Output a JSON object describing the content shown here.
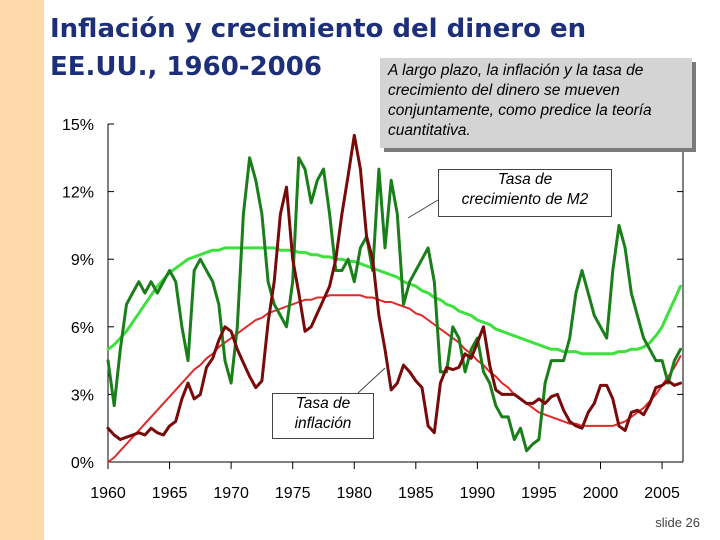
{
  "title": {
    "line1": "Inflación y crecimiento del dinero en",
    "line2": "EE.UU., 1960-2006"
  },
  "annotation": {
    "line1": "A largo plazo, la inflación y la tasa de",
    "line2": "crecimiento del dinero se mueven",
    "line3": "conjuntamente, como predice la teoría",
    "line4": "cuantitativa."
  },
  "callouts": {
    "m2": {
      "line1": "Tasa de",
      "line2": "crecimiento de M2"
    },
    "inflation": {
      "line1": "Tasa de",
      "line2": "inflación"
    }
  },
  "slide_label": "slide 26",
  "colors": {
    "m2": "#1a7f1a",
    "m2_trend": "#3ee03e",
    "inflation": "#7a0a0a",
    "inflation_trend": "#e02a2a",
    "accent_strip": "#fdd8a8",
    "title": "#1c2f78"
  },
  "chart_data": {
    "type": "line",
    "title": "Inflación y crecimiento del dinero en EE.UU., 1960-2006",
    "xlabel": "",
    "ylabel": "",
    "xlim": [
      1960,
      2006.7
    ],
    "ylim": [
      0,
      15
    ],
    "grid": false,
    "x_ticks": [
      1960,
      1965,
      1970,
      1975,
      1980,
      1985,
      1990,
      1995,
      2000,
      2005
    ],
    "x_tick_labels": [
      "1960",
      "1965",
      "1970",
      "1975",
      "1980",
      "1985",
      "1990",
      "1995",
      "2000",
      "2005"
    ],
    "y_ticks": [
      0,
      3,
      6,
      9,
      12,
      15
    ],
    "y_tick_labels": [
      "0%",
      "3%",
      "6%",
      "9%",
      "12%",
      "15%"
    ],
    "x": [
      1960.0,
      1960.5,
      1961.0,
      1961.5,
      1962.0,
      1962.5,
      1963.0,
      1963.5,
      1964.0,
      1964.5,
      1965.0,
      1965.5,
      1966.0,
      1966.5,
      1967.0,
      1967.5,
      1968.0,
      1968.5,
      1969.0,
      1969.5,
      1970.0,
      1970.5,
      1971.0,
      1971.5,
      1972.0,
      1972.5,
      1973.0,
      1973.5,
      1974.0,
      1974.5,
      1975.0,
      1975.5,
      1976.0,
      1976.5,
      1977.0,
      1977.5,
      1978.0,
      1978.5,
      1979.0,
      1979.5,
      1980.0,
      1980.5,
      1981.0,
      1981.5,
      1982.0,
      1982.5,
      1983.0,
      1983.5,
      1984.0,
      1984.5,
      1985.0,
      1985.5,
      1986.0,
      1986.5,
      1987.0,
      1987.5,
      1988.0,
      1988.5,
      1989.0,
      1989.5,
      1990.0,
      1990.5,
      1991.0,
      1991.5,
      1992.0,
      1992.5,
      1993.0,
      1993.5,
      1994.0,
      1994.5,
      1995.0,
      1995.5,
      1996.0,
      1996.5,
      1997.0,
      1997.5,
      1998.0,
      1998.5,
      1999.0,
      1999.5,
      2000.0,
      2000.5,
      2001.0,
      2001.5,
      2002.0,
      2002.5,
      2003.0,
      2003.5,
      2004.0,
      2004.5,
      2005.0,
      2005.5,
      2006.0,
      2006.5
    ],
    "series": [
      {
        "name": "Tasa de crecimiento de M2",
        "values": [
          4.5,
          2.5,
          5.0,
          7.0,
          7.5,
          8.0,
          7.5,
          8.0,
          7.5,
          8.0,
          8.5,
          8.0,
          6.0,
          4.5,
          8.5,
          9.0,
          8.5,
          8.0,
          7.0,
          4.5,
          3.5,
          6.0,
          11.0,
          13.5,
          12.5,
          11.0,
          8.0,
          7.0,
          6.5,
          6.0,
          8.0,
          13.5,
          13.0,
          11.5,
          12.5,
          13.0,
          11.0,
          8.5,
          8.5,
          9.0,
          8.0,
          9.5,
          10.0,
          8.5,
          13.0,
          9.5,
          12.5,
          11.0,
          7.0,
          8.0,
          8.5,
          9.0,
          9.5,
          8.0,
          4.0,
          4.0,
          6.0,
          5.5,
          4.0,
          5.0,
          5.5,
          4.0,
          3.5,
          2.5,
          2.0,
          2.0,
          1.0,
          1.5,
          0.5,
          0.8,
          1.0,
          3.5,
          4.5,
          4.5,
          4.5,
          5.5,
          7.5,
          8.5,
          7.5,
          6.5,
          6.0,
          5.5,
          8.5,
          10.5,
          9.5,
          7.5,
          6.5,
          5.5,
          5.0,
          4.5,
          4.5,
          3.5,
          4.5,
          5.0
        ]
      },
      {
        "name": "Tasa de inflación",
        "values": [
          1.5,
          1.2,
          1.0,
          1.1,
          1.2,
          1.3,
          1.2,
          1.5,
          1.3,
          1.2,
          1.6,
          1.8,
          2.8,
          3.5,
          2.8,
          3.0,
          4.2,
          4.6,
          5.4,
          6.0,
          5.8,
          5.0,
          4.4,
          3.8,
          3.3,
          3.6,
          6.2,
          8.0,
          11.0,
          12.2,
          9.0,
          7.5,
          5.8,
          6.0,
          6.6,
          7.2,
          7.8,
          9.0,
          11.0,
          12.7,
          14.5,
          13.0,
          10.0,
          9.0,
          6.5,
          5.0,
          3.2,
          3.5,
          4.3,
          4.0,
          3.6,
          3.3,
          1.6,
          1.3,
          3.5,
          4.2,
          4.1,
          4.2,
          4.8,
          4.6,
          5.3,
          6.0,
          4.3,
          3.2,
          3.0,
          3.0,
          3.0,
          2.8,
          2.6,
          2.6,
          2.8,
          2.6,
          2.9,
          3.0,
          2.3,
          1.8,
          1.6,
          1.5,
          2.2,
          2.6,
          3.4,
          3.4,
          2.8,
          1.6,
          1.4,
          2.2,
          2.3,
          2.1,
          2.6,
          3.3,
          3.4,
          3.6,
          3.4,
          3.5
        ]
      },
      {
        "name": "Tendencia M2",
        "style": "trend",
        "values": [
          5.0,
          5.2,
          5.5,
          5.8,
          6.2,
          6.6,
          7.0,
          7.4,
          7.8,
          8.1,
          8.4,
          8.6,
          8.8,
          9.0,
          9.1,
          9.2,
          9.3,
          9.4,
          9.4,
          9.5,
          9.5,
          9.5,
          9.5,
          9.5,
          9.5,
          9.5,
          9.5,
          9.5,
          9.4,
          9.4,
          9.4,
          9.3,
          9.3,
          9.2,
          9.2,
          9.1,
          9.1,
          9.0,
          9.0,
          8.9,
          8.9,
          8.8,
          8.7,
          8.6,
          8.5,
          8.4,
          8.3,
          8.2,
          8.0,
          7.9,
          7.8,
          7.6,
          7.5,
          7.3,
          7.2,
          7.0,
          6.9,
          6.7,
          6.6,
          6.5,
          6.3,
          6.2,
          6.1,
          5.9,
          5.8,
          5.7,
          5.6,
          5.5,
          5.4,
          5.3,
          5.2,
          5.1,
          5.0,
          5.0,
          4.9,
          4.9,
          4.9,
          4.8,
          4.8,
          4.8,
          4.8,
          4.8,
          4.8,
          4.9,
          4.9,
          5.0,
          5.0,
          5.1,
          5.3,
          5.6,
          6.0,
          6.6,
          7.2,
          7.8
        ]
      },
      {
        "name": "Tendencia inflación",
        "style": "trend",
        "values": [
          0.0,
          0.2,
          0.5,
          0.8,
          1.1,
          1.4,
          1.7,
          2.0,
          2.3,
          2.6,
          2.9,
          3.2,
          3.5,
          3.8,
          4.1,
          4.3,
          4.6,
          4.8,
          5.1,
          5.3,
          5.5,
          5.7,
          5.9,
          6.1,
          6.3,
          6.4,
          6.6,
          6.7,
          6.8,
          6.9,
          7.0,
          7.1,
          7.2,
          7.2,
          7.3,
          7.3,
          7.4,
          7.4,
          7.4,
          7.4,
          7.4,
          7.4,
          7.3,
          7.3,
          7.2,
          7.1,
          7.1,
          7.0,
          6.9,
          6.8,
          6.6,
          6.5,
          6.3,
          6.1,
          5.9,
          5.7,
          5.5,
          5.3,
          5.0,
          4.8,
          4.5,
          4.3,
          4.0,
          3.8,
          3.5,
          3.3,
          3.0,
          2.8,
          2.6,
          2.4,
          2.2,
          2.1,
          2.0,
          1.9,
          1.8,
          1.7,
          1.7,
          1.6,
          1.6,
          1.6,
          1.6,
          1.6,
          1.6,
          1.7,
          1.8,
          2.0,
          2.2,
          2.4,
          2.7,
          3.0,
          3.4,
          3.8,
          4.2,
          4.7
        ]
      }
    ]
  }
}
